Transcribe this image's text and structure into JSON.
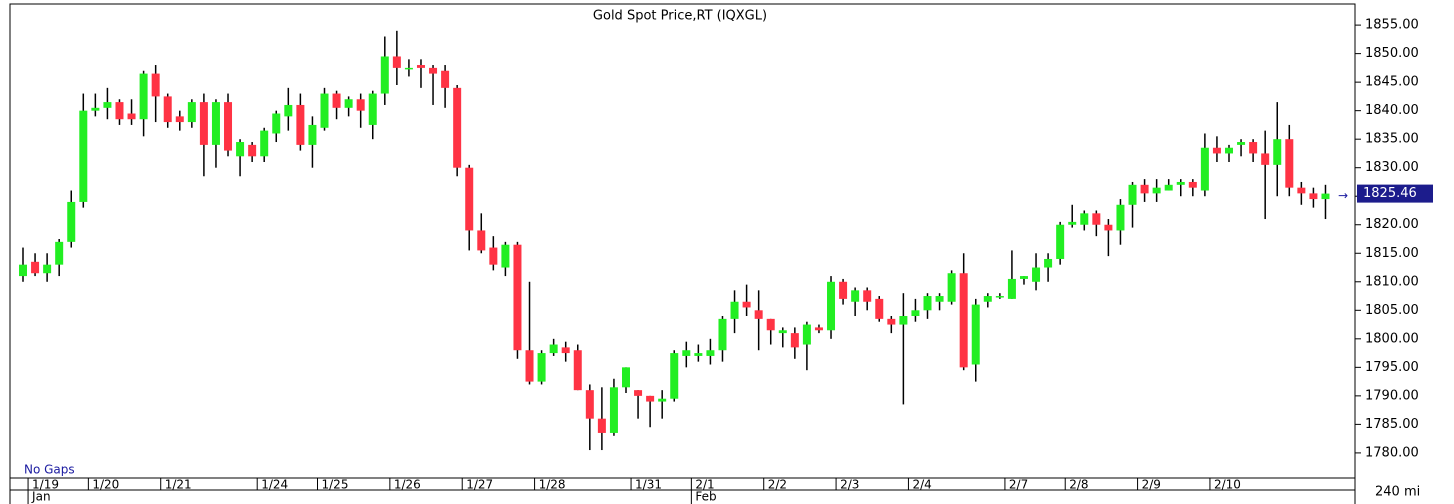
{
  "chart_data": {
    "type": "candlestick",
    "title": "Gold Spot Price,RT (IQXGL)",
    "annotation": "No Gaps",
    "interval_label": "240 mi",
    "up_color": "#22ee22",
    "down_color": "#ff3344",
    "wick_color": "#000000",
    "open": [
      1811,
      1813.5,
      1811.5,
      1813,
      1817,
      1824,
      1840,
      1840.5,
      1841.5,
      1839.5,
      1838.5,
      1846.5,
      1842.5,
      1839,
      1838,
      1841.5,
      1834,
      1841.5,
      1832,
      1834,
      1832,
      1836,
      1839,
      1841,
      1834,
      1837,
      1843,
      1840.5,
      1842,
      1837.5,
      1843,
      1849.5,
      1847.5,
      1848,
      1847.5,
      1847,
      1844,
      1830,
      1819,
      1816,
      1812.5,
      1816.5,
      1798,
      1792.5,
      1797.5,
      1798.5,
      1798,
      1791,
      1786,
      1783.5,
      1791.5,
      1791,
      1790,
      1789,
      1789.5,
      1797,
      1797,
      1797,
      1798,
      1803.5,
      1806.5,
      1805,
      1803.5,
      1801,
      1801,
      1799,
      1802,
      1801.5,
      1810,
      1806.5,
      1808.5,
      1807,
      1803.5,
      1802.5,
      1804,
      1805,
      1806.5,
      1806.5,
      1811.5,
      1795.5,
      1806.5,
      1807.5,
      1807,
      1810.5,
      1810,
      1812.5,
      1814,
      1820,
      1820,
      1822,
      1820,
      1819,
      1823.5,
      1827,
      1825.5,
      1826,
      1827,
      1827.5,
      1826,
      1833.5,
      1832.5,
      1834,
      1834.5,
      1832.5,
      1830.5,
      1835,
      1826.5,
      1825.5,
      1824.5
    ],
    "high": [
      1816,
      1815,
      1815,
      1817.5,
      1826,
      1843,
      1843,
      1844,
      1842,
      1842,
      1847,
      1848,
      1843,
      1840,
      1842,
      1843,
      1842,
      1843,
      1835,
      1834.5,
      1837,
      1840,
      1844,
      1843,
      1839,
      1844,
      1843.5,
      1842.5,
      1843,
      1843.5,
      1853,
      1854,
      1849,
      1849,
      1848,
      1848,
      1844.5,
      1830.5,
      1822,
      1818,
      1817,
      1817,
      1810,
      1798,
      1800,
      1799.5,
      1799,
      1792,
      1791.5,
      1793,
      1795,
      1791,
      1790,
      1791,
      1798,
      1799.5,
      1799,
      1800,
      1804,
      1808.5,
      1809.5,
      1808.5,
      1803.5,
      1802,
      1802,
      1803,
      1802.5,
      1811,
      1810.5,
      1809,
      1809,
      1807.5,
      1804,
      1808,
      1807,
      1808,
      1808,
      1812,
      1815,
      1807,
      1808,
      1808,
      1815.5,
      1811,
      1815,
      1815,
      1820.5,
      1823.5,
      1822.5,
      1822.5,
      1821,
      1824.5,
      1827.5,
      1828,
      1828,
      1828,
      1828,
      1828,
      1836,
      1835.5,
      1834,
      1835,
      1835,
      1836.5,
      1841.5,
      1837.5,
      1827.5,
      1826.5,
      1827
    ],
    "low": [
      1810,
      1811,
      1810,
      1811,
      1816,
      1823,
      1839,
      1838.5,
      1837.5,
      1837.5,
      1835.5,
      1838,
      1837,
      1836.5,
      1837,
      1828.5,
      1830,
      1832,
      1828.5,
      1831,
      1831,
      1834.5,
      1836.5,
      1833,
      1830,
      1836.5,
      1838.5,
      1839,
      1837,
      1835,
      1841,
      1844.5,
      1846,
      1844,
      1841,
      1840.5,
      1828.5,
      1815.5,
      1815,
      1812,
      1811,
      1796.5,
      1792,
      1792,
      1797,
      1796,
      1791,
      1780.5,
      1780.5,
      1783,
      1790.5,
      1786,
      1784.5,
      1786,
      1789,
      1795,
      1796,
      1795.5,
      1796,
      1801,
      1804,
      1798,
      1799,
      1798.5,
      1796.5,
      1794.5,
      1801,
      1800,
      1806,
      1804,
      1805,
      1803,
      1801,
      1788.5,
      1803,
      1803.5,
      1805,
      1806,
      1794.5,
      1792.5,
      1805.5,
      1807,
      1807,
      1809.5,
      1808.5,
      1810,
      1813,
      1819.5,
      1819,
      1818,
      1814.5,
      1816.5,
      1819.5,
      1824,
      1824,
      1826,
      1825,
      1825,
      1825,
      1831,
      1831,
      1832,
      1831,
      1821,
      1825,
      1825,
      1823.5,
      1823,
      1821
    ],
    "close": [
      1813,
      1811.5,
      1813,
      1817,
      1824,
      1840,
      1840.5,
      1841.5,
      1838.5,
      1838.5,
      1846.5,
      1842.5,
      1838,
      1838,
      1841.5,
      1834,
      1841.5,
      1833,
      1834.5,
      1832,
      1836.5,
      1839.5,
      1841,
      1834,
      1837.5,
      1843,
      1840.5,
      1842,
      1840,
      1843,
      1849.5,
      1847.5,
      1847.5,
      1847.5,
      1846.5,
      1844,
      1830,
      1819,
      1815.5,
      1813,
      1816.5,
      1798,
      1792.5,
      1797.5,
      1799,
      1797.5,
      1791,
      1786,
      1783.5,
      1791.5,
      1795,
      1790,
      1789,
      1789.5,
      1797.5,
      1798,
      1797.5,
      1798,
      1803.5,
      1806.5,
      1805.5,
      1803.5,
      1801.5,
      1801.5,
      1798.5,
      1802.5,
      1801.5,
      1810,
      1807,
      1808.5,
      1806.5,
      1803.5,
      1802.5,
      1804,
      1805,
      1807.5,
      1807.5,
      1811.5,
      1795,
      1806,
      1807.5,
      1807.5,
      1810.5,
      1811,
      1812.5,
      1814,
      1820,
      1820.5,
      1822,
      1820,
      1819,
      1823.5,
      1827,
      1825.5,
      1826.5,
      1827,
      1827.5,
      1826.5,
      1833.5,
      1832.5,
      1833.5,
      1834.5,
      1832.5,
      1830.5,
      1835,
      1826.5,
      1825.5,
      1824.5,
      1825.46
    ],
    "xticks": [
      {
        "value": 1,
        "label": "1/19"
      },
      {
        "value": 6,
        "label": "1/20"
      },
      {
        "value": 12,
        "label": "1/21"
      },
      {
        "value": 20,
        "label": "1/24"
      },
      {
        "value": 25,
        "label": "1/25"
      },
      {
        "value": 31,
        "label": "1/26"
      },
      {
        "value": 37,
        "label": "1/27"
      },
      {
        "value": 43,
        "label": "1/28"
      },
      {
        "value": 51,
        "label": "1/31"
      },
      {
        "value": 56,
        "label": "2/1"
      },
      {
        "value": 62,
        "label": "2/2"
      },
      {
        "value": 68,
        "label": "2/3"
      },
      {
        "value": 74,
        "label": "2/4"
      },
      {
        "value": 82,
        "label": "2/7"
      },
      {
        "value": 87,
        "label": "2/8"
      },
      {
        "value": 93,
        "label": "2/9"
      },
      {
        "value": 99,
        "label": "2/10"
      }
    ],
    "month_ticks": [
      {
        "value": 1,
        "label": "Jan"
      },
      {
        "value": 56,
        "label": "Feb"
      }
    ],
    "ylim": [
      1775.6,
      1858.7
    ],
    "yticks": [
      {
        "value": 1780,
        "label": "1780.00"
      },
      {
        "value": 1785,
        "label": "1785.00"
      },
      {
        "value": 1790,
        "label": "1790.00"
      },
      {
        "value": 1795,
        "label": "1795.00"
      },
      {
        "value": 1800,
        "label": "1800.00"
      },
      {
        "value": 1805,
        "label": "1805.00"
      },
      {
        "value": 1810,
        "label": "1810.00"
      },
      {
        "value": 1815,
        "label": "1815.00"
      },
      {
        "value": 1820,
        "label": "1820.00"
      },
      {
        "value": 1825,
        "label": "1825.00"
      },
      {
        "value": 1830,
        "label": "1830.00"
      },
      {
        "value": 1835,
        "label": "1835.00"
      },
      {
        "value": 1840,
        "label": "1840.00"
      },
      {
        "value": 1845,
        "label": "1845.00"
      },
      {
        "value": 1850,
        "label": "1850.00"
      },
      {
        "value": 1855,
        "label": "1855.00"
      }
    ]
  }
}
